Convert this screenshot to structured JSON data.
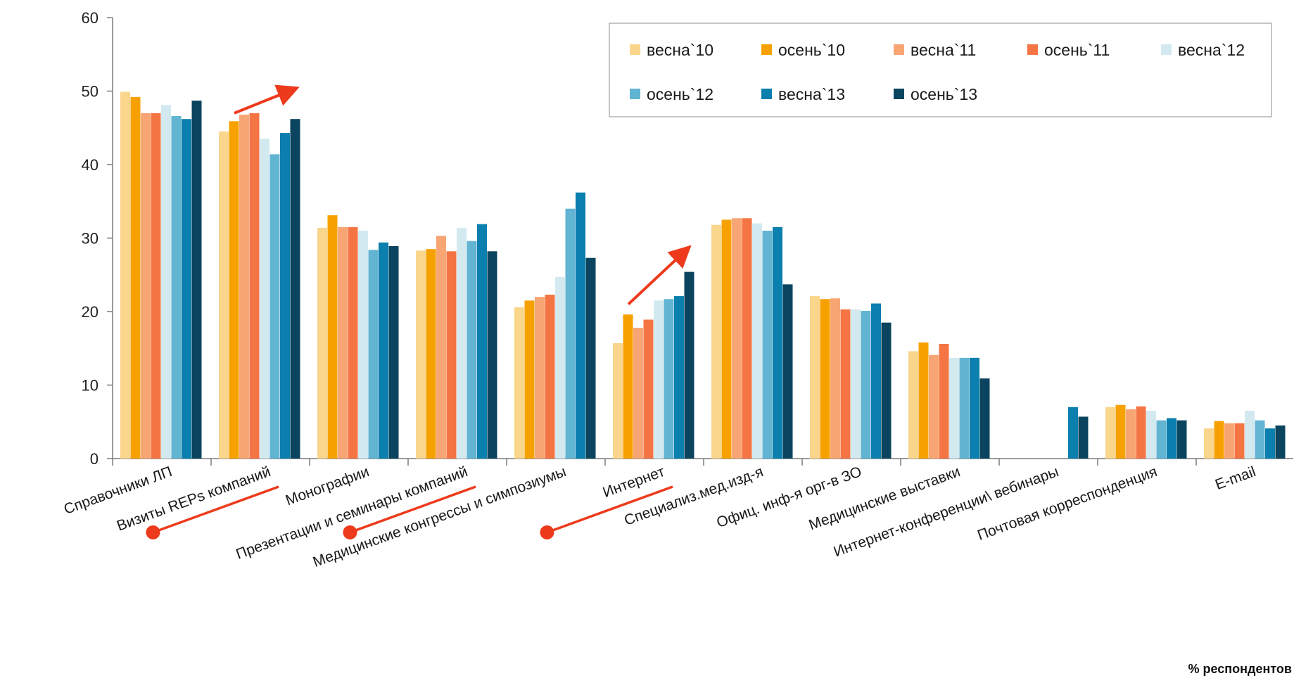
{
  "chart_data": {
    "type": "bar",
    "ylim": [
      0,
      60
    ],
    "yticks": [
      0,
      10,
      20,
      30,
      40,
      50,
      60
    ],
    "grid": false,
    "legend_position": "top-right",
    "footnote": "% респондентов",
    "categories": [
      "Справочники ЛП",
      "Визиты REPs компаний",
      "Монографии",
      "Презентации и семинары компаний",
      "Медицинские конгрессы и симпозиумы",
      "Интернет",
      "Специализ.мед.изд-я",
      "Офиц. инф-я орг-в ЗО",
      "Медицинские выставки",
      "Интернет-конференции\\ вебинары",
      "Почтовая корреспонденция",
      "E-mail"
    ],
    "series": [
      {
        "name": "весна`10",
        "color": "#FAD58C",
        "values": [
          49.9,
          44.5,
          31.4,
          28.3,
          20.6,
          15.7,
          31.8,
          22.1,
          14.6,
          null,
          7.0,
          4.1
        ]
      },
      {
        "name": "осень`10",
        "color": "#F7A100",
        "values": [
          49.2,
          45.9,
          33.1,
          28.5,
          21.5,
          19.6,
          32.5,
          21.7,
          15.8,
          null,
          7.3,
          5.1
        ]
      },
      {
        "name": "весна`11",
        "color": "#F8A574",
        "values": [
          47.0,
          46.8,
          31.5,
          30.3,
          22.0,
          17.8,
          32.7,
          21.8,
          14.1,
          null,
          6.7,
          4.8
        ]
      },
      {
        "name": "осень`11",
        "color": "#F47543",
        "values": [
          47.0,
          47.0,
          31.5,
          28.2,
          22.3,
          18.9,
          32.7,
          20.3,
          15.6,
          null,
          7.1,
          4.8
        ]
      },
      {
        "name": "весна`12",
        "color": "#D3E9F0",
        "values": [
          48.1,
          43.5,
          31.0,
          31.4,
          24.7,
          21.5,
          32.0,
          20.3,
          13.7,
          null,
          6.5,
          6.5
        ]
      },
      {
        "name": "осень`12",
        "color": "#62B4D3",
        "values": [
          46.6,
          41.4,
          28.4,
          29.6,
          34.0,
          21.7,
          31.0,
          20.1,
          13.7,
          null,
          5.2,
          5.2
        ]
      },
      {
        "name": "весна`13",
        "color": "#0B7FAE",
        "values": [
          46.2,
          44.3,
          29.4,
          31.9,
          36.2,
          22.1,
          31.5,
          21.1,
          13.7,
          7.0,
          5.5,
          4.1
        ]
      },
      {
        "name": "осень`13",
        "color": "#0B445E",
        "values": [
          48.7,
          46.2,
          28.9,
          28.2,
          27.3,
          25.4,
          23.7,
          18.5,
          10.9,
          5.7,
          5.2,
          4.5
        ]
      }
    ],
    "annotations": {
      "arrow_color": "#EE3A1C",
      "trend_arrows": [
        {
          "category": "Визиты REPs компаний",
          "from": 47.0,
          "to": 50.0
        },
        {
          "category": "Интернет",
          "from": 21.0,
          "to": 28.0
        }
      ],
      "highlighted_categories": [
        "Визиты REPs компаний",
        "Презентации и семинары компаний",
        "Интернет"
      ]
    }
  }
}
